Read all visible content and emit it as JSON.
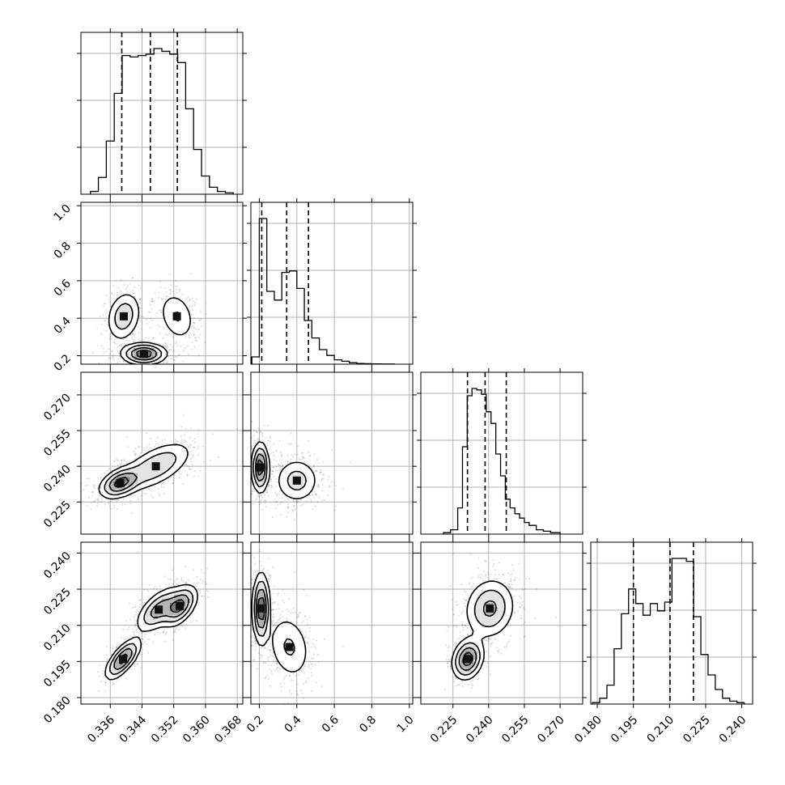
{
  "chart_data": {
    "type": "corner",
    "grid": true,
    "parameters": [
      {
        "range": [
          0.3286,
          0.3694
        ],
        "ticks": [
          "0.336",
          "0.344",
          "0.352",
          "0.360",
          "0.368"
        ],
        "tick_values": [
          0.336,
          0.344,
          0.352,
          0.36,
          0.368
        ],
        "quantiles": [
          0.3389,
          0.3461,
          0.3529
        ],
        "hist_edges": [
          0.331,
          0.333,
          0.335,
          0.337,
          0.339,
          0.341,
          0.343,
          0.345,
          0.347,
          0.349,
          0.351,
          0.353,
          0.355,
          0.357,
          0.359,
          0.361,
          0.363,
          0.365,
          0.367
        ],
        "hist_counts": [
          0.02,
          0.12,
          0.38,
          0.72,
          0.99,
          0.98,
          0.99,
          1.0,
          1.04,
          1.02,
          1.0,
          0.94,
          0.61,
          0.32,
          0.13,
          0.05,
          0.02,
          0.01
        ]
      },
      {
        "range": [
          0.155,
          1.018
        ],
        "ticks": [
          "0.2",
          "0.4",
          "0.6",
          "0.8",
          "1.0"
        ],
        "tick_values": [
          0.2,
          0.4,
          0.6,
          0.8,
          1.0
        ],
        "quantiles": [
          0.213,
          0.346,
          0.462
        ],
        "hist_edges": [
          0.16,
          0.2,
          0.24,
          0.28,
          0.32,
          0.36,
          0.4,
          0.44,
          0.48,
          0.52,
          0.56,
          0.6,
          0.64,
          0.68,
          0.72,
          0.76,
          0.8,
          0.84,
          0.88,
          0.92
        ],
        "hist_counts": [
          0.05,
          1.0,
          0.5,
          0.44,
          0.63,
          0.64,
          0.52,
          0.3,
          0.18,
          0.1,
          0.06,
          0.03,
          0.02,
          0.01,
          0.005,
          0.003,
          0.002,
          0.001,
          0.001
        ]
      },
      {
        "range": [
          0.2115,
          0.2795
        ],
        "ticks": [
          "0.225",
          "0.240",
          "0.255",
          "0.270"
        ],
        "tick_values": [
          0.225,
          0.24,
          0.255,
          0.27
        ],
        "quantiles": [
          0.2311,
          0.2385,
          0.2474
        ],
        "hist_edges": [
          0.221,
          0.224,
          0.227,
          0.229,
          0.231,
          0.233,
          0.235,
          0.237,
          0.239,
          0.241,
          0.243,
          0.245,
          0.247,
          0.249,
          0.251,
          0.253,
          0.255,
          0.257,
          0.26,
          0.263,
          0.266,
          0.27
        ],
        "hist_counts": [
          0.01,
          0.03,
          0.18,
          0.6,
          0.95,
          1.0,
          0.99,
          0.96,
          0.84,
          0.76,
          0.55,
          0.4,
          0.24,
          0.18,
          0.14,
          0.11,
          0.08,
          0.06,
          0.03,
          0.02,
          0.01
        ]
      },
      {
        "range": [
          0.1773,
          0.2445
        ],
        "ticks": [
          "0.180",
          "0.195",
          "0.210",
          "0.225",
          "0.240"
        ],
        "tick_values": [
          0.18,
          0.195,
          0.21,
          0.225,
          0.24
        ],
        "quantiles": [
          0.195,
          0.2102,
          0.2199
        ],
        "hist_edges": [
          0.178,
          0.181,
          0.184,
          0.187,
          0.19,
          0.193,
          0.196,
          0.199,
          0.202,
          0.205,
          0.208,
          0.211,
          0.214,
          0.217,
          0.22,
          0.223,
          0.226,
          0.229,
          0.232,
          0.235,
          0.238,
          0.241
        ],
        "hist_counts": [
          0.01,
          0.04,
          0.13,
          0.38,
          0.62,
          0.79,
          0.69,
          0.61,
          0.69,
          0.64,
          0.7,
          1.0,
          1.0,
          0.98,
          0.6,
          0.34,
          0.2,
          0.1,
          0.04,
          0.02,
          0.01
        ]
      }
    ],
    "joint": [
      {
        "row": 1,
        "col": 0,
        "modes": [
          {
            "x": 0.3394,
            "y": 0.41,
            "sx": 0.0022,
            "sy": 0.068,
            "rho": 0.2,
            "w": 0.35
          },
          {
            "x": 0.3445,
            "y": 0.21,
            "sx": 0.0028,
            "sy": 0.028,
            "rho": 0.0,
            "w": 0.4
          },
          {
            "x": 0.3528,
            "y": 0.41,
            "sx": 0.0024,
            "sy": 0.07,
            "rho": -0.25,
            "w": 0.25
          }
        ]
      },
      {
        "row": 2,
        "col": 0,
        "modes": [
          {
            "x": 0.3385,
            "y": 0.233,
            "sx": 0.0026,
            "sy": 0.0032,
            "rho": 0.4,
            "w": 0.4
          },
          {
            "x": 0.3475,
            "y": 0.24,
            "sx": 0.0046,
            "sy": 0.0052,
            "rho": 0.6,
            "w": 0.6
          }
        ]
      },
      {
        "row": 2,
        "col": 1,
        "modes": [
          {
            "x": 0.205,
            "y": 0.2395,
            "sx": 0.022,
            "sy": 0.0052,
            "rho": 0.0,
            "w": 0.5
          },
          {
            "x": 0.4,
            "y": 0.234,
            "sx": 0.06,
            "sy": 0.0048,
            "rho": 0.0,
            "w": 0.5
          }
        ]
      },
      {
        "row": 3,
        "col": 0,
        "modes": [
          {
            "x": 0.3392,
            "y": 0.196,
            "sx": 0.0022,
            "sy": 0.0042,
            "rho": 0.7,
            "w": 0.3
          },
          {
            "x": 0.3482,
            "y": 0.2165,
            "sx": 0.0028,
            "sy": 0.0046,
            "rho": 0.6,
            "w": 0.35
          },
          {
            "x": 0.3535,
            "y": 0.218,
            "sx": 0.0022,
            "sy": 0.0042,
            "rho": 0.5,
            "w": 0.35
          }
        ]
      },
      {
        "row": 3,
        "col": 1,
        "modes": [
          {
            "x": 0.21,
            "y": 0.217,
            "sx": 0.022,
            "sy": 0.0072,
            "rho": 0.0,
            "w": 0.55
          },
          {
            "x": 0.36,
            "y": 0.201,
            "sx": 0.06,
            "sy": 0.0072,
            "rho": -0.2,
            "w": 0.45
          }
        ]
      },
      {
        "row": 3,
        "col": 2,
        "modes": [
          {
            "x": 0.2312,
            "y": 0.196,
            "sx": 0.0032,
            "sy": 0.0042,
            "rho": 0.2,
            "w": 0.4
          },
          {
            "x": 0.2405,
            "y": 0.217,
            "sx": 0.0052,
            "sy": 0.0062,
            "rho": 0.1,
            "w": 0.6
          }
        ]
      }
    ]
  }
}
